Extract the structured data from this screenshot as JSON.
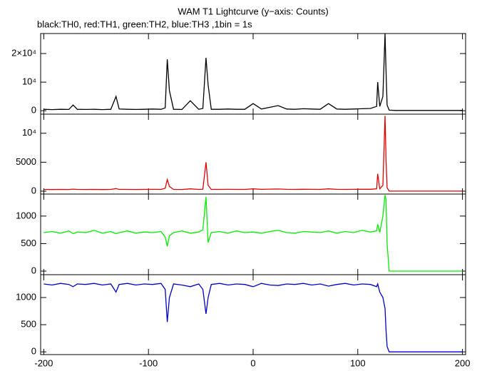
{
  "chart_data": [
    {
      "type": "line",
      "title": "WAM T1 Lightcurve (y−axis: Counts)",
      "subtitle": "black:TH0, red:TH1, green:TH2, blue:TH3 ,1bin = 1s",
      "color": "#000000",
      "x": [
        -200,
        -192,
        -184,
        -176,
        -172,
        -168,
        -160,
        -152,
        -144,
        -136,
        -131,
        -128,
        -120,
        -112,
        -104,
        -96,
        -88,
        -84,
        -82,
        -80,
        -76,
        -68,
        -60,
        -52,
        -48,
        -45,
        -43,
        -40,
        -32,
        -24,
        -16,
        -8,
        0,
        8,
        16,
        24,
        32,
        40,
        48,
        56,
        64,
        72,
        80,
        88,
        96,
        104,
        112,
        118,
        119,
        121,
        124,
        126,
        127,
        128,
        130,
        136,
        150,
        170,
        200
      ],
      "values": [
        500,
        400,
        500,
        450,
        2000,
        500,
        450,
        500,
        400,
        500,
        5000,
        600,
        500,
        450,
        500,
        600,
        500,
        1000,
        18000,
        7000,
        500,
        450,
        3500,
        500,
        800,
        18500,
        9000,
        500,
        500,
        600,
        500,
        500,
        2500,
        600,
        1200,
        1800,
        600,
        500,
        700,
        600,
        500,
        2500,
        600,
        500,
        600,
        700,
        800,
        1500,
        10000,
        1500,
        5000,
        27000,
        14000,
        2000,
        200,
        100,
        100,
        100,
        100
      ],
      "ylim": [
        -1200,
        27000
      ],
      "yticks": [
        0,
        {
          "value": 10000,
          "label": "10⁴"
        },
        {
          "value": 20000,
          "label": "2×10⁴"
        }
      ]
    },
    {
      "type": "line",
      "color": "#e00000",
      "x": [
        -200,
        -192,
        -184,
        -176,
        -172,
        -168,
        -160,
        -152,
        -144,
        -136,
        -131,
        -128,
        -120,
        -112,
        -104,
        -96,
        -88,
        -84,
        -82,
        -80,
        -76,
        -68,
        -60,
        -52,
        -48,
        -45,
        -43,
        -40,
        -32,
        -24,
        -16,
        -8,
        0,
        8,
        16,
        24,
        32,
        40,
        48,
        56,
        64,
        72,
        80,
        88,
        96,
        104,
        112,
        118,
        119,
        121,
        124,
        126,
        127,
        128,
        130,
        136,
        150,
        170,
        200
      ],
      "values": [
        300,
        280,
        300,
        290,
        350,
        300,
        290,
        300,
        280,
        300,
        450,
        300,
        300,
        290,
        300,
        310,
        300,
        500,
        2000,
        800,
        300,
        290,
        400,
        300,
        320,
        5000,
        1000,
        300,
        300,
        310,
        300,
        300,
        400,
        310,
        350,
        380,
        310,
        300,
        320,
        310,
        300,
        400,
        310,
        300,
        310,
        320,
        330,
        400,
        3000,
        400,
        1000,
        13000,
        5500,
        600,
        20,
        10,
        10,
        10,
        10
      ],
      "ylim": [
        -500,
        13300
      ],
      "yticks": [
        0,
        5000,
        {
          "value": 10000,
          "label": "10⁴"
        }
      ]
    },
    {
      "type": "line",
      "color": "#00ee00",
      "x": [
        -200,
        -192,
        -184,
        -176,
        -172,
        -168,
        -160,
        -152,
        -144,
        -136,
        -131,
        -128,
        -120,
        -112,
        -104,
        -96,
        -88,
        -84,
        -82,
        -80,
        -76,
        -68,
        -60,
        -52,
        -48,
        -45,
        -43,
        -40,
        -32,
        -24,
        -16,
        -8,
        0,
        8,
        16,
        24,
        32,
        40,
        48,
        56,
        64,
        72,
        80,
        88,
        96,
        104,
        112,
        118,
        119,
        121,
        124,
        126,
        127,
        128,
        130,
        136,
        150,
        170,
        200
      ],
      "values": [
        700,
        720,
        690,
        730,
        680,
        710,
        700,
        740,
        690,
        720,
        680,
        700,
        730,
        690,
        710,
        700,
        720,
        620,
        450,
        640,
        700,
        730,
        690,
        710,
        750,
        1350,
        520,
        700,
        720,
        690,
        730,
        700,
        710,
        690,
        720,
        740,
        700,
        690,
        720,
        710,
        700,
        730,
        690,
        720,
        700,
        740,
        710,
        730,
        850,
        700,
        1000,
        1380,
        1300,
        500,
        0,
        0,
        0,
        0,
        0
      ],
      "ylim": [
        -65,
        1400
      ],
      "yticks": [
        0,
        500,
        1000
      ]
    },
    {
      "type": "line",
      "color": "#0000cc",
      "x": [
        -200,
        -192,
        -184,
        -176,
        -172,
        -168,
        -160,
        -152,
        -144,
        -136,
        -131,
        -128,
        -120,
        -112,
        -104,
        -96,
        -88,
        -84,
        -82,
        -80,
        -76,
        -68,
        -60,
        -52,
        -48,
        -45,
        -43,
        -40,
        -32,
        -24,
        -16,
        -8,
        0,
        8,
        16,
        24,
        32,
        40,
        48,
        56,
        64,
        72,
        80,
        88,
        96,
        104,
        112,
        118,
        119,
        121,
        124,
        126,
        127,
        128,
        130,
        136,
        150,
        170,
        200
      ],
      "values": [
        1250,
        1230,
        1260,
        1240,
        1200,
        1250,
        1240,
        1260,
        1230,
        1250,
        1100,
        1240,
        1260,
        1230,
        1250,
        1240,
        1260,
        1150,
        550,
        1000,
        1250,
        1230,
        1200,
        1250,
        1150,
        700,
        1000,
        1240,
        1260,
        1230,
        1250,
        1240,
        1200,
        1260,
        1230,
        1220,
        1250,
        1240,
        1260,
        1230,
        1250,
        1210,
        1240,
        1260,
        1230,
        1250,
        1240,
        1200,
        1250,
        1100,
        1000,
        800,
        400,
        100,
        0,
        0,
        0,
        0,
        0
      ],
      "ylim": [
        -50,
        1420
      ],
      "yticks": [
        0,
        500,
        1000
      ],
      "xlim": [
        -203,
        203
      ],
      "xticks": [
        -200,
        -100,
        0,
        100,
        200
      ]
    }
  ]
}
